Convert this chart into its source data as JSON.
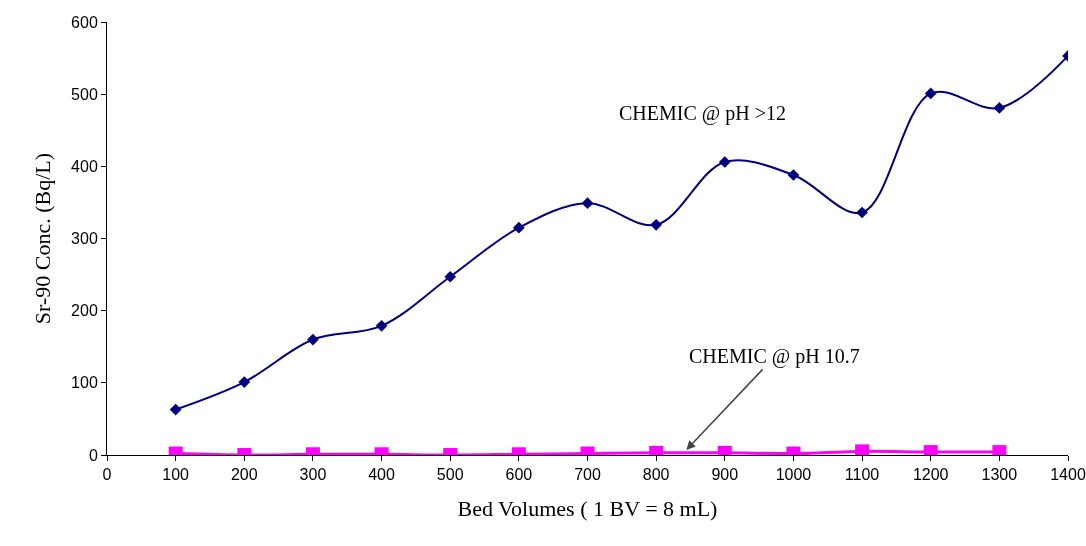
{
  "chart_data": {
    "type": "line",
    "xlabel": "Bed Volumes ( 1 BV = 8 mL)",
    "ylabel": "Sr-90 Conc. (Bq/L)",
    "xlim": [
      0,
      1400
    ],
    "xticks": [
      0,
      100,
      200,
      300,
      400,
      500,
      600,
      700,
      800,
      900,
      1000,
      1100,
      1200,
      1300,
      1400
    ],
    "ylim": [
      0,
      600
    ],
    "yticks": [
      0,
      100,
      200,
      300,
      400,
      500,
      600
    ],
    "grid": false,
    "line_style": "solid",
    "series": [
      {
        "color": "#000080",
        "marker": "diamond",
        "x": [
          100,
          200,
          300,
          400,
          500,
          600,
          700,
          800,
          900,
          1000,
          1100,
          1200,
          1300,
          1400
        ],
        "values": [
          63,
          101,
          160,
          179,
          247,
          315,
          349,
          319,
          406,
          388,
          336,
          501,
          481,
          553
        ]
      },
      {
        "color": "#ff00ff",
        "marker": "square",
        "x": [
          100,
          200,
          300,
          400,
          500,
          600,
          700,
          800,
          900,
          1000,
          1100,
          1200,
          1300
        ],
        "values": [
          2,
          0,
          1,
          1,
          0,
          1,
          2,
          3,
          3,
          2,
          5,
          4,
          4
        ]
      }
    ],
    "annotations": [
      "CHEMIC @ pH >12",
      {
        "text": "CHEMIC @ pH 10.7",
        "x": 842,
        "y": 5
      }
    ]
  }
}
